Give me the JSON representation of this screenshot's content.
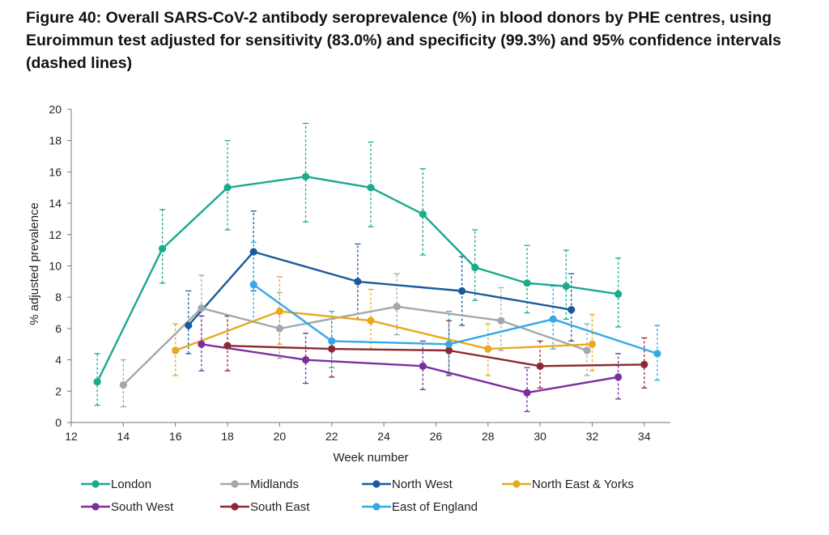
{
  "figure": {
    "title": "Figure 40:  Overall SARS-CoV-2 antibody seroprevalence (%) in blood donors by PHE centres, using Euroimmun test adjusted for sensitivity (83.0%) and specificity (99.3%) and 95% confidence intervals (dashed lines)"
  },
  "chart_data": {
    "type": "line",
    "xlabel": "Week number",
    "ylabel": "% adjusted prevalence",
    "xlim": [
      12,
      35
    ],
    "ylim": [
      0,
      20
    ],
    "xticks": [
      12,
      14,
      16,
      18,
      20,
      22,
      24,
      26,
      28,
      30,
      32,
      34
    ],
    "yticks": [
      0,
      2,
      4,
      6,
      8,
      10,
      12,
      14,
      16,
      18,
      20
    ],
    "grid": false,
    "legend_position": "bottom",
    "series": [
      {
        "name": "London",
        "color": "#1aaa8e",
        "x": [
          13,
          15.5,
          18,
          21,
          23.5,
          25.5,
          27.5,
          29.5,
          31,
          33
        ],
        "y": [
          2.6,
          11.1,
          15.0,
          15.7,
          15.0,
          13.3,
          9.9,
          8.9,
          8.7,
          8.2
        ],
        "lower": [
          1.1,
          8.9,
          12.3,
          12.8,
          12.5,
          10.7,
          7.8,
          7.0,
          6.6,
          6.1
        ],
        "upper": [
          4.4,
          13.6,
          18.0,
          19.1,
          17.9,
          16.2,
          12.3,
          11.3,
          11.0,
          10.5
        ]
      },
      {
        "name": "Midlands",
        "color": "#a3a8ac",
        "x": [
          14,
          17,
          20,
          24.5,
          28.5,
          31.8
        ],
        "y": [
          2.4,
          7.3,
          6.0,
          7.4,
          6.5,
          4.6
        ],
        "lower": [
          1.0,
          5.0,
          4.1,
          5.6,
          4.6,
          3.0
        ],
        "upper": [
          4.0,
          9.4,
          8.3,
          9.5,
          8.6,
          6.3
        ]
      },
      {
        "name": "North West",
        "color": "#1a5a9c",
        "x": [
          16.5,
          19,
          23,
          27,
          31.2
        ],
        "y": [
          6.2,
          10.9,
          9.0,
          8.4,
          7.2
        ],
        "lower": [
          4.4,
          8.4,
          6.6,
          6.2,
          5.2
        ],
        "upper": [
          8.4,
          13.5,
          11.4,
          10.6,
          9.5
        ]
      },
      {
        "name": "North East & Yorks",
        "color": "#e8a91e",
        "x": [
          16,
          20,
          23.5,
          28,
          32
        ],
        "y": [
          4.6,
          7.1,
          6.5,
          4.7,
          5.0
        ],
        "lower": [
          3.0,
          5.0,
          4.7,
          3.0,
          3.3
        ],
        "upper": [
          6.3,
          9.3,
          8.5,
          6.3,
          6.9
        ]
      },
      {
        "name": "South West",
        "color": "#7b2f9e",
        "x": [
          17,
          21,
          25.5,
          29.5,
          33
        ],
        "y": [
          5.0,
          4.0,
          3.6,
          1.9,
          2.9
        ],
        "lower": [
          3.3,
          2.5,
          2.1,
          0.7,
          1.5
        ],
        "upper": [
          6.8,
          5.7,
          5.2,
          3.5,
          4.4
        ]
      },
      {
        "name": "South East",
        "color": "#8b2a2e",
        "x": [
          18,
          22,
          26.5,
          30,
          34
        ],
        "y": [
          4.9,
          4.7,
          4.6,
          3.6,
          3.7
        ],
        "lower": [
          3.3,
          2.9,
          3.0,
          2.2,
          2.2
        ],
        "upper": [
          6.8,
          6.6,
          6.5,
          5.2,
          5.4
        ]
      },
      {
        "name": "East of England",
        "color": "#35a8e8",
        "x": [
          19,
          22,
          26.5,
          30.5,
          34.5
        ],
        "y": [
          8.8,
          5.2,
          5.0,
          6.6,
          4.4
        ],
        "lower": [
          6.4,
          3.5,
          3.1,
          4.7,
          2.7
        ],
        "upper": [
          11.5,
          7.1,
          7.1,
          8.7,
          6.2
        ]
      }
    ]
  }
}
